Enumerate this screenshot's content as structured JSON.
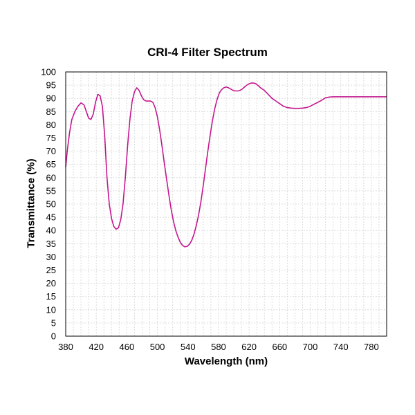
{
  "chart_data": {
    "type": "line",
    "title": "CRI-4 Filter Spectrum",
    "xlabel": "Wavelength (nm)",
    "ylabel": "Transmittance (%)",
    "xlim": [
      380,
      800
    ],
    "ylim": [
      0,
      100
    ],
    "x_ticks": [
      380,
      420,
      460,
      500,
      540,
      580,
      620,
      660,
      700,
      740,
      780
    ],
    "y_ticks": [
      0,
      5,
      10,
      15,
      20,
      25,
      30,
      35,
      40,
      45,
      50,
      55,
      60,
      65,
      70,
      75,
      80,
      85,
      90,
      95,
      100
    ],
    "minor_x_step": 10,
    "grid": true,
    "legend": "none",
    "line_color": "#c4168e",
    "series": [
      {
        "x": [
          380,
          382,
          385,
          388,
          392,
          396,
          400,
          404,
          407,
          410,
          413,
          416,
          419,
          422,
          425,
          428,
          431,
          434,
          437,
          440,
          443,
          446,
          449,
          452,
          455,
          458,
          461,
          464,
          467,
          470,
          473,
          476,
          479,
          482,
          485,
          488,
          491,
          494,
          497,
          500,
          503,
          506,
          509,
          512,
          515,
          518,
          521,
          524,
          527,
          530,
          533,
          536,
          539,
          542,
          545,
          548,
          551,
          554,
          557,
          560,
          563,
          566,
          569,
          572,
          575,
          578,
          581,
          584,
          587,
          590,
          593,
          596,
          599,
          602,
          605,
          608,
          611,
          614,
          617,
          620,
          623,
          626,
          629,
          632,
          635,
          640,
          645,
          650,
          655,
          660,
          665,
          670,
          675,
          680,
          685,
          690,
          695,
          700,
          705,
          710,
          715,
          720,
          725,
          730,
          735,
          740,
          745,
          750,
          755,
          760,
          765,
          770,
          775,
          780,
          785,
          790,
          795,
          800
        ],
        "y": [
          64,
          70,
          77,
          82,
          85,
          87,
          88.3,
          87.5,
          85.0,
          82.5,
          82.0,
          84.0,
          88.5,
          91.5,
          91.0,
          87.0,
          76.0,
          60.0,
          50.0,
          44.5,
          41.5,
          40.5,
          41.0,
          44.0,
          50.0,
          60.0,
          72.0,
          82.0,
          89.0,
          92.5,
          94.0,
          93.0,
          91.0,
          89.5,
          89.0,
          89.0,
          89.0,
          88.5,
          86.5,
          83.0,
          78.0,
          72.0,
          65.5,
          59.5,
          53.5,
          48.0,
          43.5,
          40.0,
          37.5,
          35.5,
          34.3,
          33.8,
          34.0,
          34.8,
          36.3,
          38.7,
          42.0,
          46.0,
          51.0,
          57.0,
          63.5,
          70.0,
          76.0,
          81.5,
          86.0,
          89.5,
          92.0,
          93.3,
          94.0,
          94.3,
          94.0,
          93.5,
          93.0,
          92.8,
          92.8,
          93.0,
          93.5,
          94.3,
          95.0,
          95.5,
          95.8,
          95.8,
          95.5,
          94.8,
          94.0,
          93.0,
          91.5,
          90.0,
          89.0,
          88.0,
          87.0,
          86.5,
          86.3,
          86.2,
          86.2,
          86.3,
          86.5,
          87.0,
          87.8,
          88.5,
          89.3,
          90.2,
          90.5,
          90.6,
          90.6,
          90.6,
          90.6,
          90.6,
          90.6,
          90.6,
          90.6,
          90.6,
          90.6,
          90.6,
          90.6,
          90.6,
          90.6,
          90.6
        ]
      }
    ]
  }
}
